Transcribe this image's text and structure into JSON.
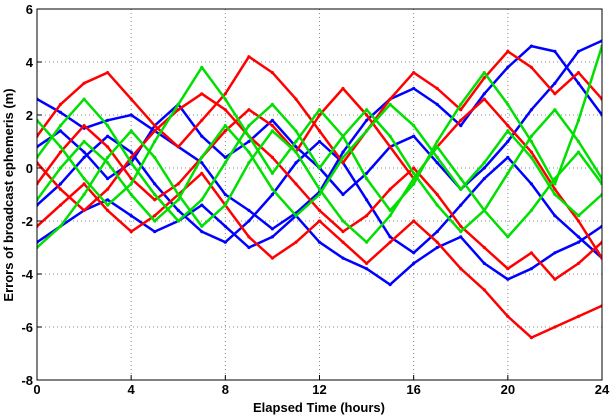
{
  "chart_data": {
    "type": "line",
    "title": "",
    "xlabel": "Elapsed Time (hours)",
    "ylabel": "Errors of broadcast ephemeris (m)",
    "xlim": [
      0,
      24
    ],
    "ylim": [
      -8,
      6
    ],
    "xticks": [
      0,
      4,
      8,
      12,
      16,
      20,
      24
    ],
    "yticks": [
      -8,
      -6,
      -4,
      -2,
      0,
      2,
      4,
      6
    ],
    "grid": true,
    "series_colors": [
      "#0000ff",
      "#ff0000",
      "#00e000"
    ],
    "series": [
      {
        "color": "#0000ff",
        "x": [
          0,
          1,
          2,
          3,
          4,
          5,
          6,
          7,
          8,
          9,
          10,
          11,
          12,
          13,
          14,
          15,
          16,
          17,
          18,
          19,
          20,
          21,
          22,
          23,
          24
        ],
        "y": [
          2.6,
          2.1,
          1.5,
          1.8,
          2.0,
          1.4,
          0.8,
          0.2,
          -1.0,
          -1.6,
          -2.3,
          -1.7,
          -0.9,
          0.6,
          1.8,
          2.6,
          3.0,
          2.4,
          1.6,
          2.8,
          3.8,
          4.6,
          4.4,
          3.2,
          2.0
        ]
      },
      {
        "color": "#0000ff",
        "x": [
          0,
          1,
          2,
          3,
          4,
          5,
          6,
          7,
          8,
          9,
          10,
          11,
          12,
          13,
          14,
          15,
          16,
          17,
          18,
          19,
          20,
          21,
          22,
          23,
          24
        ],
        "y": [
          -2.8,
          -2.2,
          -1.6,
          -1.2,
          -1.8,
          -2.4,
          -2.0,
          -1.4,
          -2.2,
          -3.0,
          -2.6,
          -1.8,
          -2.8,
          -3.4,
          -3.8,
          -4.4,
          -3.6,
          -3.0,
          -2.6,
          -3.6,
          -4.2,
          -3.8,
          -3.2,
          -2.8,
          -2.2
        ]
      },
      {
        "color": "#0000ff",
        "x": [
          0,
          1,
          2,
          3,
          4,
          5,
          6,
          7,
          8,
          9,
          10,
          11,
          12,
          13,
          14,
          15,
          16,
          17,
          18,
          19,
          20,
          21,
          22,
          23,
          24
        ],
        "y": [
          0.8,
          1.4,
          0.6,
          -0.4,
          0.2,
          1.6,
          2.4,
          1.2,
          0.4,
          1.0,
          1.8,
          0.8,
          0.0,
          -1.0,
          -0.2,
          0.8,
          1.2,
          0.2,
          -0.8,
          0.0,
          1.0,
          2.2,
          3.2,
          4.4,
          4.8
        ]
      },
      {
        "color": "#0000ff",
        "x": [
          0,
          1,
          2,
          3,
          4,
          5,
          6,
          7,
          8,
          9,
          10,
          11,
          12,
          13,
          14,
          15,
          16,
          17,
          18,
          19,
          20,
          21,
          22,
          23,
          24
        ],
        "y": [
          -1.4,
          -0.6,
          0.4,
          1.2,
          0.6,
          -0.6,
          -1.6,
          -2.4,
          -2.8,
          -2.0,
          -1.0,
          0.2,
          1.0,
          0.2,
          -1.2,
          -2.6,
          -3.2,
          -2.4,
          -1.4,
          -0.4,
          0.4,
          -0.6,
          -1.8,
          -2.6,
          -3.4
        ]
      },
      {
        "color": "#ff0000",
        "x": [
          0,
          1,
          2,
          3,
          4,
          5,
          6,
          7,
          8,
          9,
          10,
          11,
          12,
          13,
          14,
          15,
          16,
          17,
          18,
          19,
          20,
          21,
          22,
          23,
          24
        ],
        "y": [
          1.2,
          2.4,
          3.2,
          3.6,
          2.6,
          1.6,
          0.8,
          1.8,
          2.8,
          4.2,
          3.6,
          2.6,
          1.4,
          0.2,
          1.4,
          2.6,
          3.6,
          3.0,
          2.2,
          3.4,
          4.4,
          3.8,
          2.8,
          3.6,
          2.6
        ]
      },
      {
        "color": "#ff0000",
        "x": [
          0,
          1,
          2,
          3,
          4,
          5,
          6,
          7,
          8,
          9,
          10,
          11,
          12,
          13,
          14,
          15,
          16,
          17,
          18,
          19,
          20,
          21,
          22,
          23,
          24
        ],
        "y": [
          -2.2,
          -1.4,
          -0.6,
          -1.6,
          -2.4,
          -1.8,
          -1.0,
          -0.2,
          -1.4,
          -2.6,
          -3.4,
          -2.8,
          -2.0,
          -2.8,
          -3.6,
          -2.8,
          -2.0,
          -2.8,
          -3.8,
          -4.6,
          -5.6,
          -6.4,
          -6.0,
          -5.6,
          -5.2
        ]
      },
      {
        "color": "#ff0000",
        "x": [
          0,
          1,
          2,
          3,
          4,
          5,
          6,
          7,
          8,
          9,
          10,
          11,
          12,
          13,
          14,
          15,
          16,
          17,
          18,
          19,
          20,
          21,
          22,
          23,
          24
        ],
        "y": [
          0.2,
          -0.8,
          -1.6,
          -0.8,
          0.4,
          1.4,
          2.2,
          2.8,
          2.2,
          1.2,
          0.4,
          -0.6,
          -1.6,
          -2.4,
          -1.8,
          -0.8,
          0.0,
          -1.0,
          -2.2,
          -3.0,
          -3.8,
          -3.2,
          -4.2,
          -3.6,
          -2.8
        ]
      },
      {
        "color": "#ff0000",
        "x": [
          0,
          1,
          2,
          3,
          4,
          5,
          6,
          7,
          8,
          9,
          10,
          11,
          12,
          13,
          14,
          15,
          16,
          17,
          18,
          19,
          20,
          21,
          22,
          23,
          24
        ],
        "y": [
          -0.6,
          0.6,
          1.6,
          0.8,
          -0.4,
          -1.2,
          -0.6,
          0.4,
          1.4,
          2.2,
          1.6,
          0.6,
          2.0,
          3.0,
          2.0,
          0.8,
          -0.4,
          0.8,
          1.8,
          2.6,
          1.6,
          0.6,
          -0.8,
          -2.0,
          -3.4
        ]
      },
      {
        "color": "#00e000",
        "x": [
          0,
          1,
          2,
          3,
          4,
          5,
          6,
          7,
          8,
          9,
          10,
          11,
          12,
          13,
          14,
          15,
          16,
          17,
          18,
          19,
          20,
          21,
          22,
          23,
          24
        ],
        "y": [
          1.8,
          0.8,
          -0.4,
          -1.4,
          -0.6,
          1.0,
          2.4,
          3.8,
          2.6,
          1.2,
          -0.2,
          1.0,
          2.2,
          1.2,
          -0.4,
          -1.6,
          -0.6,
          1.0,
          2.4,
          3.6,
          2.4,
          1.0,
          -0.6,
          1.8,
          4.6
        ]
      },
      {
        "color": "#00e000",
        "x": [
          0,
          1,
          2,
          3,
          4,
          5,
          6,
          7,
          8,
          9,
          10,
          11,
          12,
          13,
          14,
          15,
          16,
          17,
          18,
          19,
          20,
          21,
          22,
          23,
          24
        ],
        "y": [
          -3.0,
          -2.2,
          -1.0,
          0.4,
          1.4,
          0.4,
          -1.0,
          -2.2,
          -1.4,
          0.2,
          1.4,
          0.6,
          -0.8,
          -2.0,
          -2.8,
          -1.8,
          -0.4,
          0.8,
          -0.4,
          -1.6,
          -2.6,
          -1.6,
          -0.4,
          0.6,
          -0.6
        ]
      },
      {
        "color": "#00e000",
        "x": [
          0,
          1,
          2,
          3,
          4,
          5,
          6,
          7,
          8,
          9,
          10,
          11,
          12,
          13,
          14,
          15,
          16,
          17,
          18,
          19,
          20,
          21,
          22,
          23,
          24
        ],
        "y": [
          0.4,
          1.6,
          2.6,
          1.6,
          0.2,
          -1.0,
          -2.0,
          -1.2,
          0.2,
          1.6,
          2.4,
          1.4,
          0.0,
          1.2,
          2.2,
          1.2,
          -0.2,
          -1.4,
          -2.4,
          -1.6,
          -0.2,
          1.2,
          2.2,
          1.0,
          -0.4
        ]
      },
      {
        "color": "#00e000",
        "x": [
          0,
          1,
          2,
          3,
          4,
          5,
          6,
          7,
          8,
          9,
          10,
          11,
          12,
          13,
          14,
          15,
          16,
          17,
          18,
          19,
          20,
          21,
          22,
          23,
          24
        ],
        "y": [
          -1.2,
          0.0,
          1.0,
          0.2,
          -1.0,
          -2.0,
          -1.2,
          0.4,
          1.6,
          0.6,
          -0.8,
          -1.8,
          -1.0,
          0.4,
          1.4,
          2.4,
          1.6,
          0.4,
          -0.8,
          0.2,
          1.4,
          0.4,
          -1.0,
          -1.8,
          -1.0
        ]
      }
    ]
  }
}
